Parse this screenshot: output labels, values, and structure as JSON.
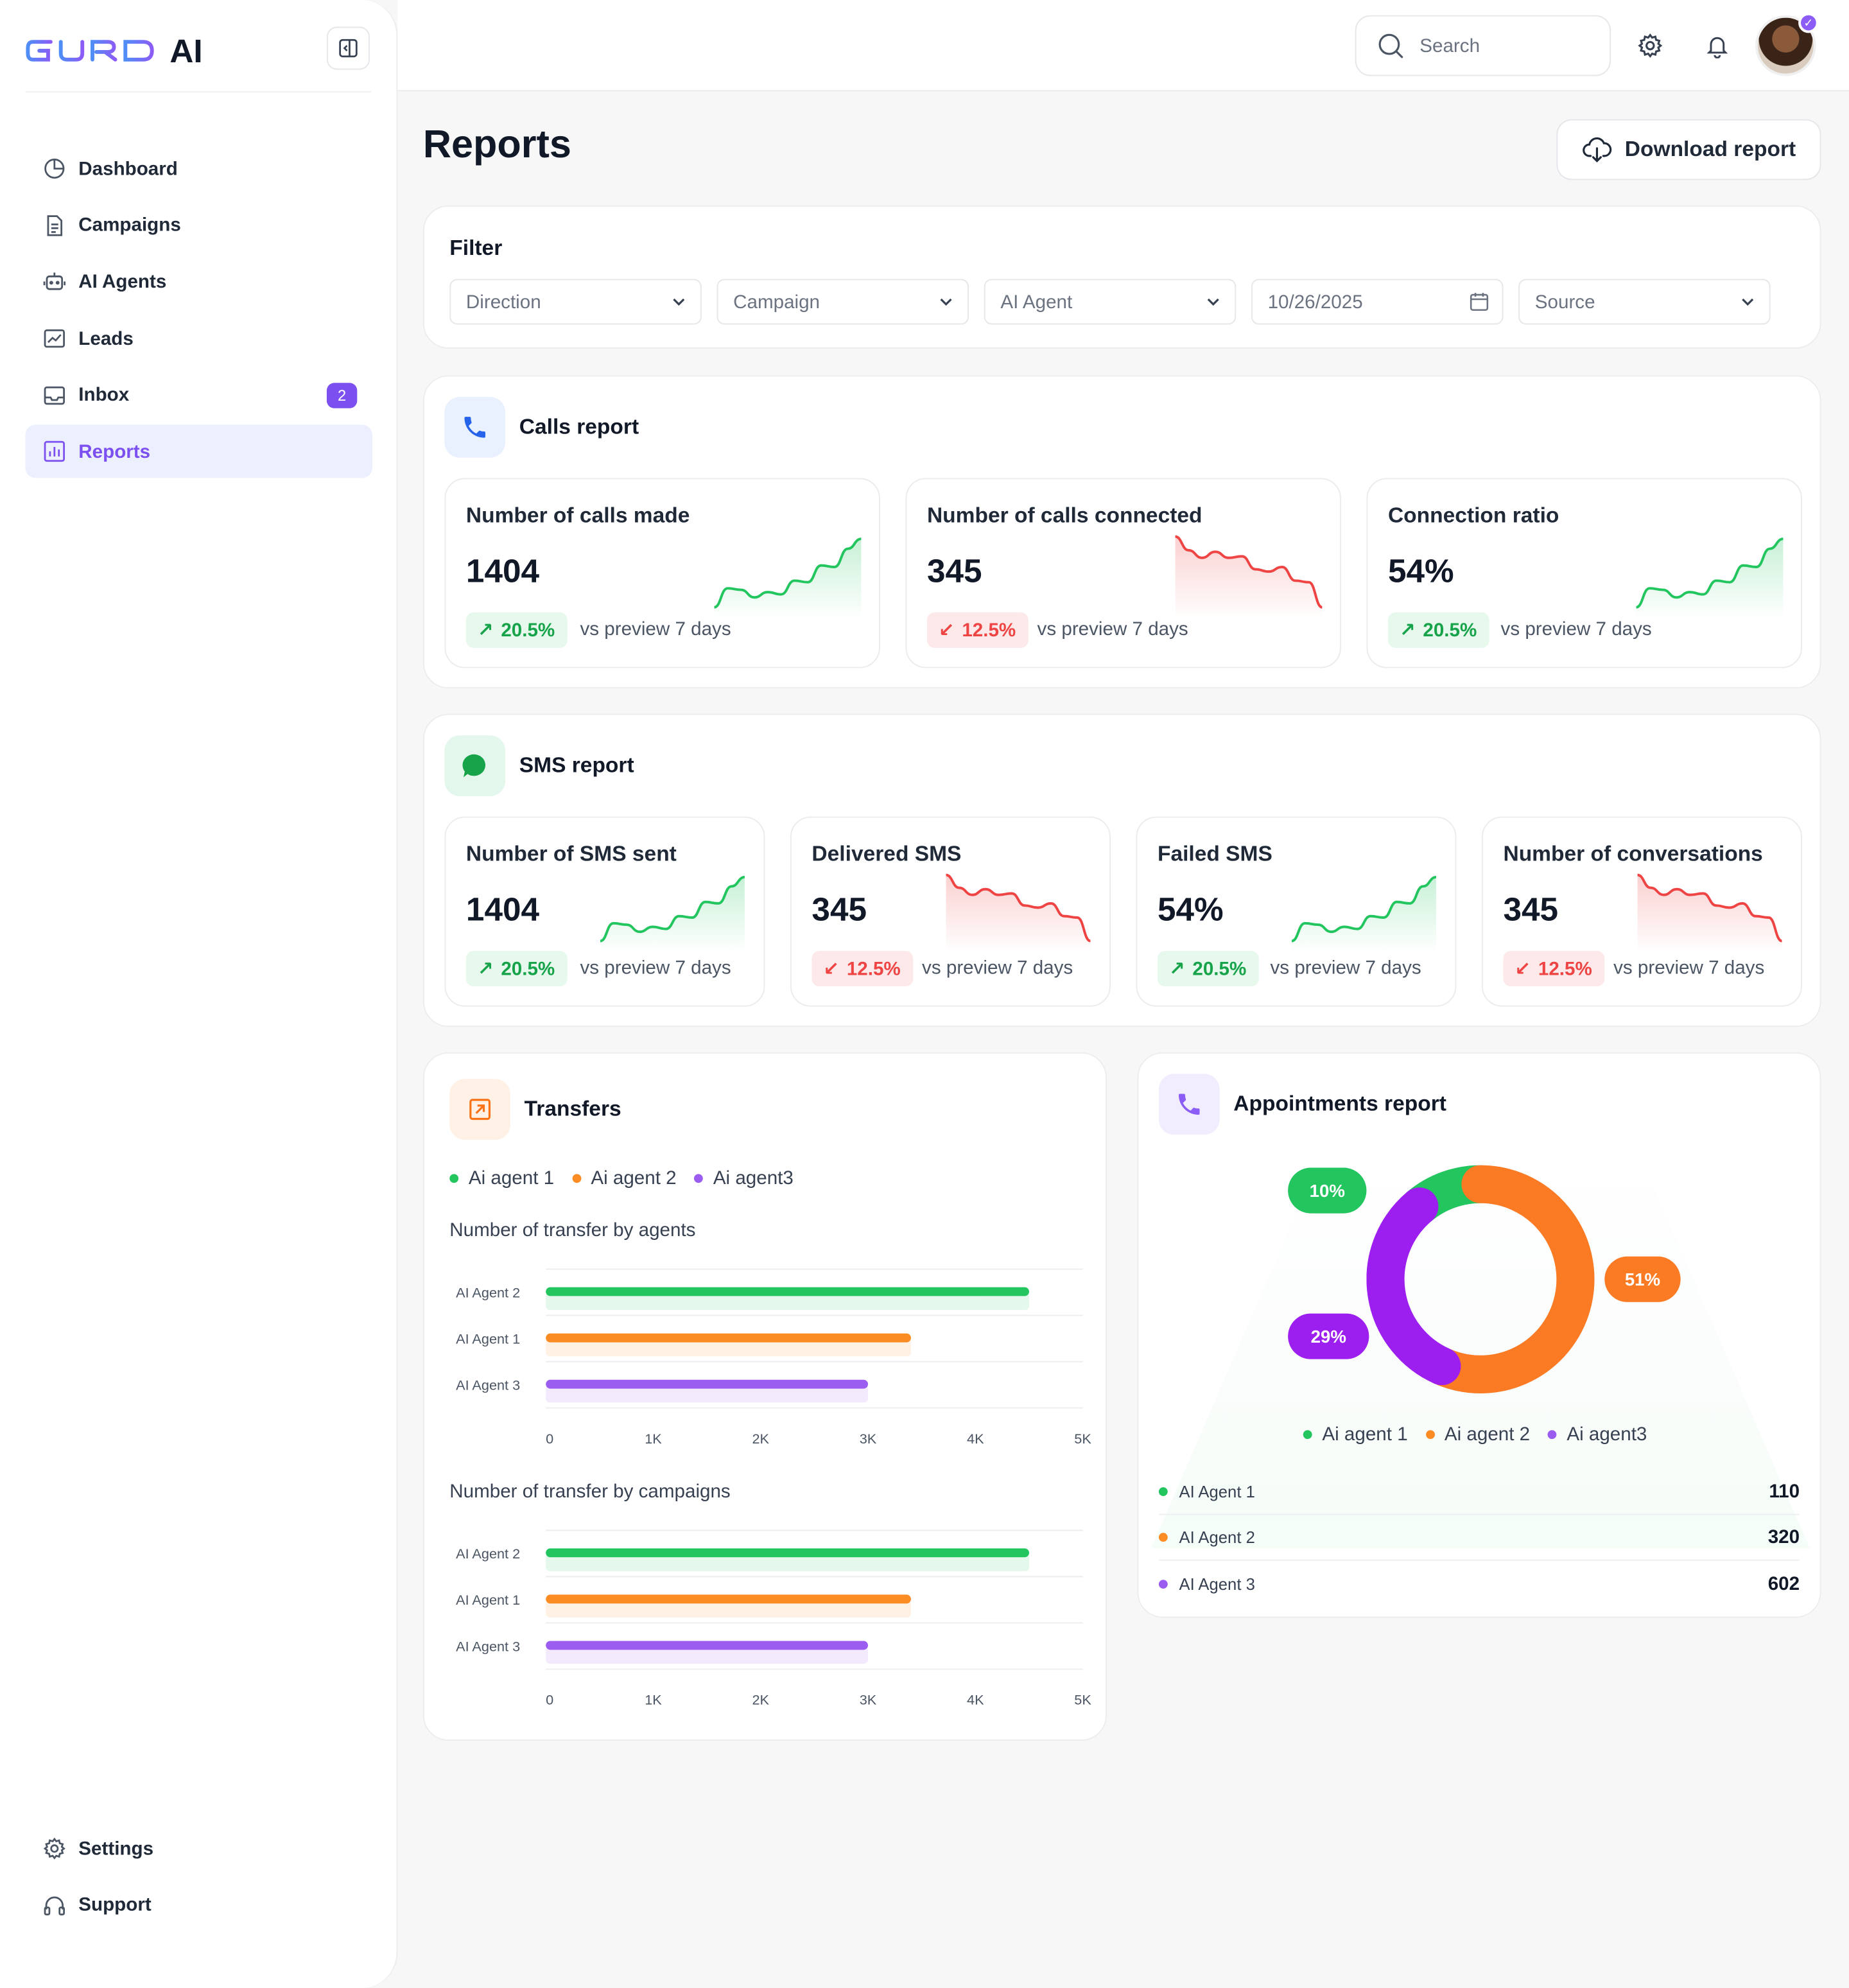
{
  "app": {
    "brand_ai": "AI"
  },
  "sidebar": {
    "items": [
      {
        "label": "Dashboard",
        "icon": "chart-pie-icon"
      },
      {
        "label": "Campaigns",
        "icon": "document-icon"
      },
      {
        "label": "AI Agents",
        "icon": "robot-icon"
      },
      {
        "label": "Leads",
        "icon": "trend-icon"
      },
      {
        "label": "Inbox",
        "icon": "inbox-icon",
        "badge": "2"
      },
      {
        "label": "Reports",
        "icon": "bar-chart-icon",
        "active": true
      }
    ],
    "bottom": [
      {
        "label": "Settings",
        "icon": "gear-icon"
      },
      {
        "label": "Support",
        "icon": "headset-icon"
      }
    ]
  },
  "topbar": {
    "search_placeholder": "Search"
  },
  "page": {
    "title": "Reports",
    "download_label": "Download report"
  },
  "filter": {
    "title": "Filter",
    "fields": [
      {
        "label": "Direction",
        "kind": "select"
      },
      {
        "label": "Campaign",
        "kind": "select"
      },
      {
        "label": "AI Agent",
        "kind": "select"
      },
      {
        "label": "10/26/2025",
        "kind": "date"
      },
      {
        "label": "Source",
        "kind": "select"
      }
    ]
  },
  "calls": {
    "title": "Calls report",
    "metrics": [
      {
        "label": "Number of calls made",
        "value": "1404",
        "delta": "20.5%",
        "trend": "up",
        "vs": "vs preview 7 days"
      },
      {
        "label": "Number of calls connected",
        "value": "345",
        "delta": "12.5%",
        "trend": "down",
        "vs": "vs preview 7 days"
      },
      {
        "label": "Connection ratio",
        "value": "54%",
        "delta": "20.5%",
        "trend": "up",
        "vs": "vs preview 7 days"
      }
    ]
  },
  "sms": {
    "title": "SMS report",
    "metrics": [
      {
        "label": "Number of SMS sent",
        "value": "1404",
        "delta": "20.5%",
        "trend": "up",
        "vs": "vs preview 7 days"
      },
      {
        "label": "Delivered SMS",
        "value": "345",
        "delta": "12.5%",
        "trend": "down",
        "vs": "vs preview 7 days"
      },
      {
        "label": "Failed SMS",
        "value": "54%",
        "delta": "20.5%",
        "trend": "up",
        "vs": "vs preview 7 days"
      },
      {
        "label": "Number of conversations",
        "value": "345",
        "delta": "12.5%",
        "trend": "down",
        "vs": "vs preview 7 days"
      }
    ]
  },
  "colors": {
    "green": "#22c55e",
    "orange": "#fb8c24",
    "purple": "#9b5cf0",
    "red": "#ef4444",
    "accent": "#7c4ff0"
  },
  "transfers": {
    "title": "Transfers",
    "legend": [
      "Ai agent 1",
      "Ai agent 2",
      "Ai agent3"
    ],
    "by_agents_title": "Number of transfer by agents",
    "by_campaigns_title": "Number of transfer by campaigns"
  },
  "appointments": {
    "title": "Appointments report",
    "legend": [
      "Ai agent 1",
      "Ai agent 2",
      "Ai agent3"
    ],
    "rows": [
      {
        "name": "AI Agent 1",
        "value": "110"
      },
      {
        "name": "AI Agent 2",
        "value": "320"
      },
      {
        "name": "AI Agent 3",
        "value": "602"
      }
    ]
  },
  "chart_data": [
    {
      "type": "bar",
      "orientation": "horizontal",
      "title": "Number of transfer by agents",
      "categories": [
        "AI Agent 2",
        "AI Agent 1",
        "AI Agent 3"
      ],
      "values": [
        4500,
        3400,
        3000
      ],
      "xlim": [
        0,
        5000
      ],
      "xticks": [
        "0",
        "1K",
        "2K",
        "3K",
        "4K",
        "5K"
      ]
    },
    {
      "type": "bar",
      "orientation": "horizontal",
      "title": "Number of transfer by campaigns",
      "categories": [
        "AI Agent 2",
        "AI Agent 1",
        "AI Agent 3"
      ],
      "values": [
        4500,
        3400,
        3000
      ],
      "xlim": [
        0,
        5000
      ],
      "xticks": [
        "0",
        "1K",
        "2K",
        "3K",
        "4K",
        "5K"
      ]
    },
    {
      "type": "pie",
      "title": "Appointments report",
      "labels": [
        "Ai agent 1",
        "Ai agent 2",
        "Ai agent3"
      ],
      "values": [
        10,
        51,
        29
      ],
      "value_labels": [
        "10%",
        "51%",
        "29%"
      ]
    }
  ]
}
